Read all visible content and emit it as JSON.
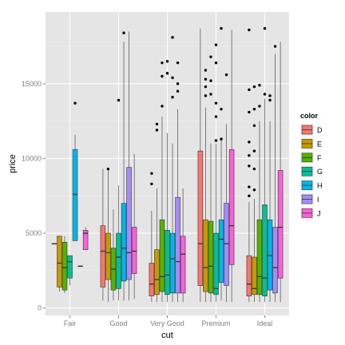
{
  "chart_data": {
    "type": "boxplot",
    "title": "",
    "xlabel": "cut",
    "ylabel": "price",
    "ylim": [
      -500,
      19800
    ],
    "yticks": [
      0,
      5000,
      10000,
      15000
    ],
    "ytick_labels": [
      "0",
      "5000",
      "10000",
      "15000"
    ],
    "grid": true,
    "legend": {
      "title": "color",
      "position": "right"
    },
    "categories": [
      "Fair",
      "Good",
      "Very Good",
      "Premium",
      "Ideal"
    ],
    "series": [
      {
        "name": "D",
        "color": "#f8766d",
        "boxes": [
          {
            "min": 4300,
            "q1": 4300,
            "median": 4300,
            "q3": 4300,
            "max": 4300,
            "outliers": []
          },
          {
            "min": 500,
            "q1": 1400,
            "median": 3800,
            "q3": 5500,
            "max": 9300,
            "outliers": []
          },
          {
            "min": 400,
            "q1": 800,
            "median": 1600,
            "q3": 3000,
            "max": 6500,
            "outliers": [
              8300,
              9000
            ]
          },
          {
            "min": 400,
            "q1": 1500,
            "median": 4300,
            "q3": 10500,
            "max": 18700,
            "outliers": []
          },
          {
            "min": 400,
            "q1": 800,
            "median": 1600,
            "q3": 3500,
            "max": 7100,
            "outliers": [
              7500,
              8100,
              9500,
              10200,
              11100,
              13100,
              14600,
              18600
            ]
          }
        ]
      },
      {
        "name": "E",
        "color": "#c49a00",
        "boxes": [
          {
            "min": 1100,
            "q1": 1400,
            "median": 3000,
            "q3": 4800,
            "max": 4800,
            "outliers": []
          },
          {
            "min": 400,
            "q1": 1900,
            "median": 3700,
            "q3": 5000,
            "max": 9300,
            "outliers": [
              9300
            ]
          },
          {
            "min": 400,
            "q1": 900,
            "median": 1900,
            "q3": 3900,
            "max": 8000,
            "outliers": [
              11900,
              12300
            ]
          },
          {
            "min": 400,
            "q1": 1100,
            "median": 2700,
            "q3": 5900,
            "max": 13400,
            "outliers": [
              14200,
              14800,
              15300,
              15900
            ]
          },
          {
            "min": 400,
            "q1": 900,
            "median": 1300,
            "q3": 3400,
            "max": 7300,
            "outliers": [
              7900,
              9300,
              10500,
              12200,
              13300,
              14800
            ]
          }
        ]
      },
      {
        "name": "F",
        "color": "#53b400",
        "boxes": [
          {
            "min": 1000,
            "q1": 1200,
            "median": 2700,
            "q3": 4400,
            "max": 4800,
            "outliers": []
          },
          {
            "min": 500,
            "q1": 1200,
            "median": 2600,
            "q3": 4000,
            "max": 6600,
            "outliers": []
          },
          {
            "min": 400,
            "q1": 1100,
            "median": 2100,
            "q3": 5900,
            "max": 12800,
            "outliers": [
              13500,
              15500,
              16400
            ]
          },
          {
            "min": 400,
            "q1": 1000,
            "median": 2800,
            "q3": 5800,
            "max": 11000,
            "outliers": [
              14300,
              15200,
              16800
            ]
          },
          {
            "min": 400,
            "q1": 900,
            "median": 2100,
            "q3": 5900,
            "max": 12500,
            "outliers": [
              13500,
              14900
            ]
          }
        ]
      },
      {
        "name": "G",
        "color": "#00c094",
        "boxes": [
          {
            "min": 1500,
            "q1": 2000,
            "median": 3100,
            "q3": 3500,
            "max": 3500,
            "outliers": []
          },
          {
            "min": 500,
            "q1": 1300,
            "median": 3400,
            "q3": 5000,
            "max": 8200,
            "outliers": [
              13900
            ]
          },
          {
            "min": 400,
            "q1": 900,
            "median": 2200,
            "q3": 5200,
            "max": 11700,
            "outliers": [
              15700,
              16500
            ]
          },
          {
            "min": 400,
            "q1": 900,
            "median": 1300,
            "q3": 5000,
            "max": 11000,
            "outliers": [
              11200,
              12800,
              13700,
              16400,
              17600
            ]
          },
          {
            "min": 400,
            "q1": 800,
            "median": 2000,
            "q3": 6900,
            "max": 14000,
            "outliers": [
              14300,
              18700
            ]
          }
        ]
      },
      {
        "name": "H",
        "color": "#00b6eb",
        "boxes": [
          {
            "min": 4500,
            "q1": 4500,
            "median": 7600,
            "q3": 10600,
            "max": 11600,
            "outliers": [
              13700
            ]
          },
          {
            "min": 500,
            "q1": 1800,
            "median": 4000,
            "q3": 7000,
            "max": 17800,
            "outliers": [
              18400
            ]
          },
          {
            "min": 400,
            "q1": 1000,
            "median": 3300,
            "q3": 5000,
            "max": 11000,
            "outliers": [
              14100,
              15400,
              18100
            ]
          },
          {
            "min": 500,
            "q1": 1700,
            "median": 4600,
            "q3": 5900,
            "max": 11300,
            "outliers": [
              11300,
              13300,
              18700
            ]
          },
          {
            "min": 400,
            "q1": 1200,
            "median": 3500,
            "q3": 5900,
            "max": 12500,
            "outliers": [
              13900,
              14200
            ]
          }
        ]
      },
      {
        "name": "I",
        "color": "#a58aff",
        "boxes": [
          {
            "min": 2800,
            "q1": 2800,
            "median": 2800,
            "q3": 2800,
            "max": 2800,
            "outliers": []
          },
          {
            "min": 500,
            "q1": 1900,
            "median": 3700,
            "q3": 9400,
            "max": 18500,
            "outliers": []
          },
          {
            "min": 400,
            "q1": 1000,
            "median": 3100,
            "q3": 7400,
            "max": 13300,
            "outliers": [
              14500,
              15000,
              16400
            ]
          },
          {
            "min": 400,
            "q1": 1500,
            "median": 4300,
            "q3": 7000,
            "max": 12300,
            "outliers": [
              15600
            ]
          },
          {
            "min": 400,
            "q1": 1000,
            "median": 2700,
            "q3": 5400,
            "max": 17000,
            "outliers": [
              17500
            ]
          }
        ]
      },
      {
        "name": "J",
        "color": "#fb61d7",
        "boxes": [
          {
            "min": 3900,
            "q1": 3900,
            "median": 5000,
            "q3": 5200,
            "max": 5400,
            "outliers": []
          },
          {
            "min": 600,
            "q1": 2300,
            "median": 3800,
            "q3": 5400,
            "max": 10300,
            "outliers": []
          },
          {
            "min": 400,
            "q1": 1000,
            "median": 3600,
            "q3": 4800,
            "max": 8000,
            "outliers": []
          },
          {
            "min": 400,
            "q1": 2900,
            "median": 5500,
            "q3": 10600,
            "max": 18600,
            "outliers": []
          },
          {
            "min": 400,
            "q1": 2000,
            "median": 5400,
            "q3": 9200,
            "max": 17800,
            "outliers": []
          }
        ]
      }
    ]
  }
}
